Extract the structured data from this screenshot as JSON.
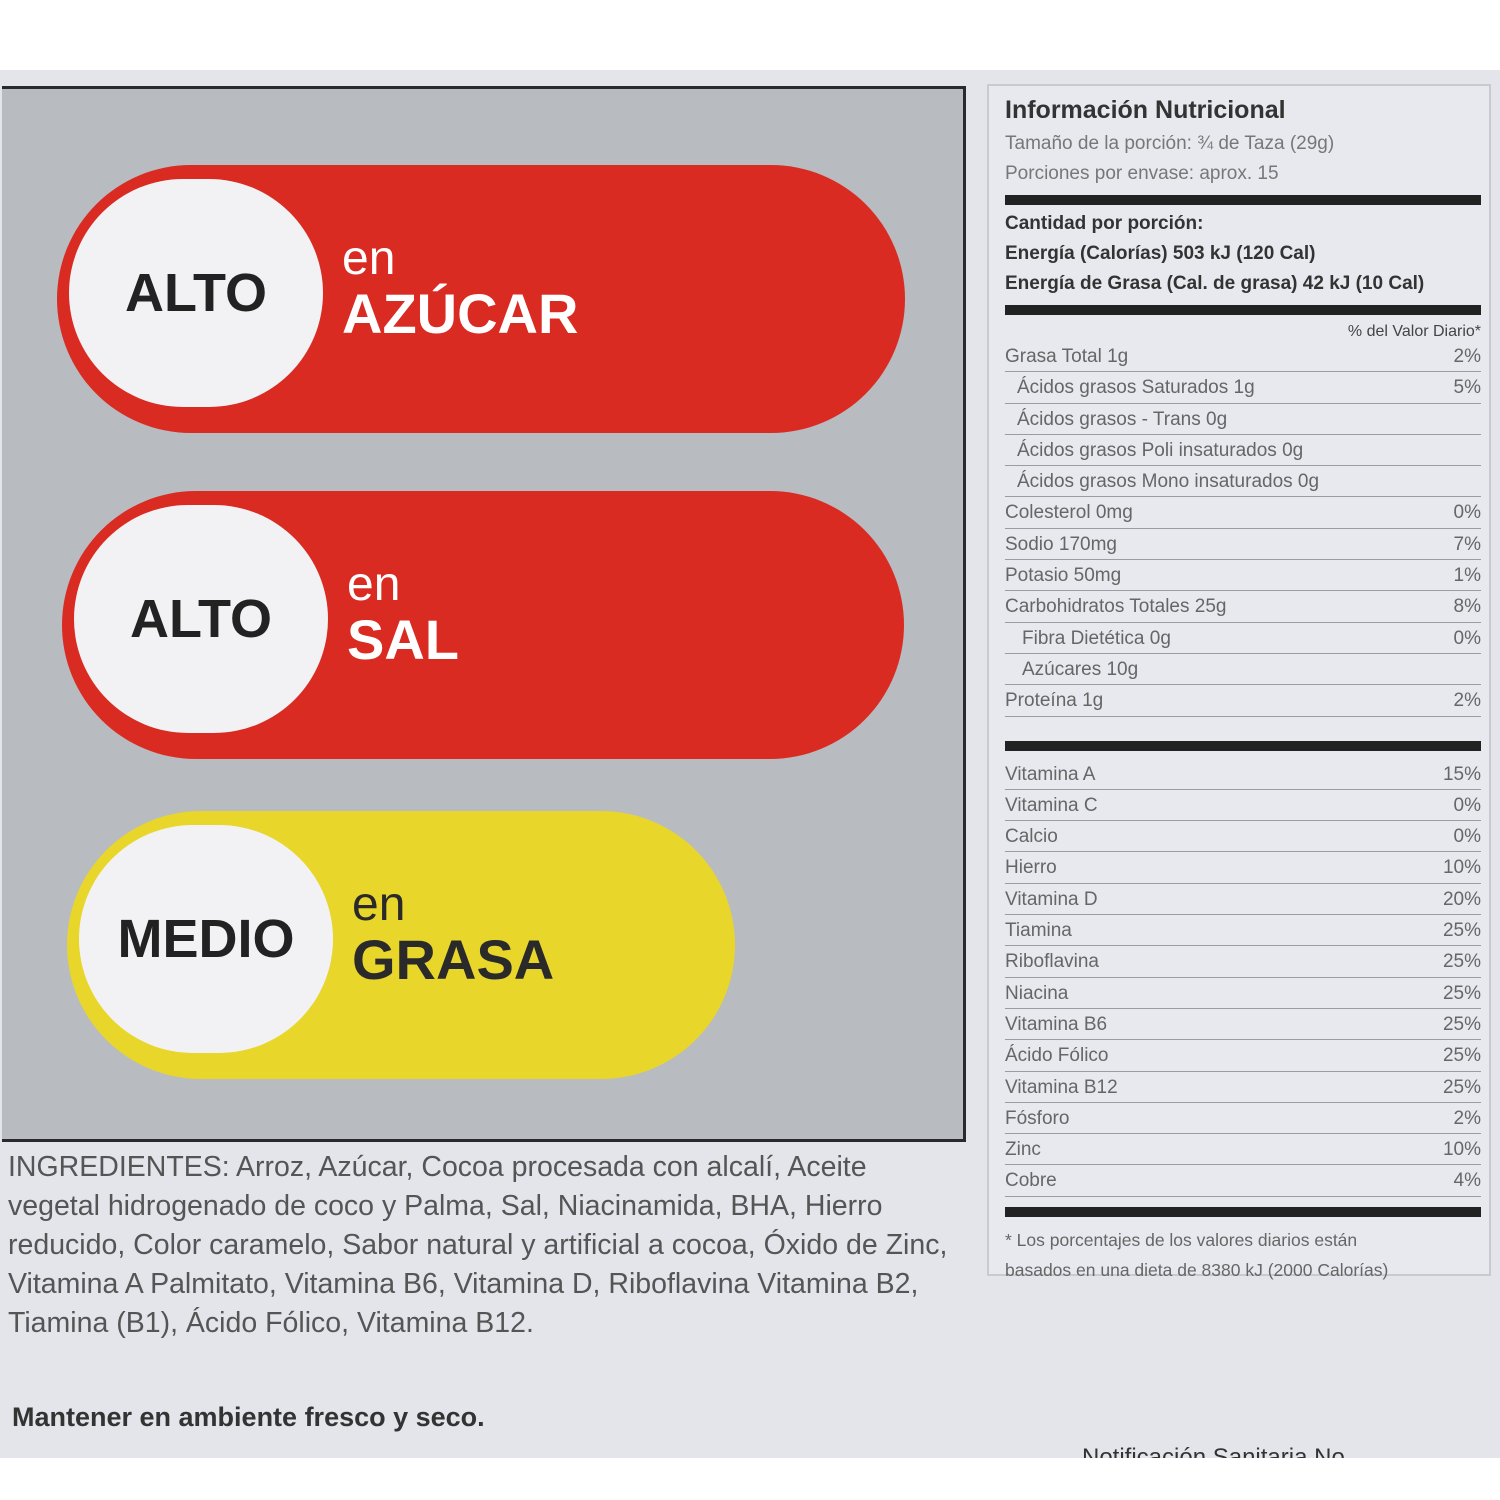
{
  "warnings": [
    {
      "level": "ALTO",
      "prefix": "en",
      "nutrient": "AZÚCAR",
      "color": "#d92b22"
    },
    {
      "level": "ALTO",
      "prefix": "en",
      "nutrient": "SAL",
      "color": "#d92b22"
    },
    {
      "level": "MEDIO",
      "prefix": "en",
      "nutrient": "GRASA",
      "color": "#e8d62a"
    }
  ],
  "ingredients": "INGREDIENTES: Arroz, Azúcar, Cocoa procesada con alcalí, Aceite vegetal hidrogenado de coco y Palma, Sal, Niacinamida, BHA, Hierro reducido, Color caramelo, Sabor natural y artificial a cocoa, Óxido de Zinc, Vitamina A Palmitato, Vitamina B6, Vitamina D, Riboflavina Vitamina B2, Tiamina (B1), Ácido Fólico, Vitamina B12.",
  "storage": "Mantener en ambiente fresco y seco.",
  "notification": "Notificación Sanitaria No.",
  "nutrition": {
    "title": "Información Nutricional",
    "serving_size": "Tamaño de la porción: ¾ de Taza (29g)",
    "servings": "Porciones por envase: aprox. 15",
    "amount_label": "Cantidad por porción:",
    "energy": "Energía (Calorías) 503 kJ (120 Cal)",
    "fat_energy": "Energía de Grasa  (Cal. de grasa) 42 kJ (10 Cal)",
    "dv_header": "% del Valor Diario*",
    "nutrients": [
      {
        "name": "Grasa Total  1g",
        "dv": "2%",
        "indent": 0
      },
      {
        "name": "Ácidos grasos Saturados 1g",
        "dv": "5%",
        "indent": 1
      },
      {
        "name": "Ácidos grasos - Trans 0g",
        "dv": "",
        "indent": 1
      },
      {
        "name": "Ácidos grasos Poli insaturados 0g",
        "dv": "",
        "indent": 1
      },
      {
        "name": "Ácidos grasos Mono insaturados 0g",
        "dv": "",
        "indent": 1
      },
      {
        "name": "Colesterol 0mg",
        "dv": "0%",
        "indent": 0
      },
      {
        "name": "Sodio 170mg",
        "dv": "7%",
        "indent": 0
      },
      {
        "name": "Potasio 50mg",
        "dv": "1%",
        "indent": 0
      },
      {
        "name": "Carbohidratos Totales 25g",
        "dv": "8%",
        "indent": 0
      },
      {
        "name": "Fibra Dietética 0g",
        "dv": "0%",
        "indent": 2
      },
      {
        "name": "Azúcares 10g",
        "dv": "",
        "indent": 2
      },
      {
        "name": "Proteína 1g",
        "dv": "2%",
        "indent": 0
      }
    ],
    "vitamins": [
      {
        "name": "Vitamina A",
        "dv": "15%"
      },
      {
        "name": "Vitamina C",
        "dv": "0%"
      },
      {
        "name": "Calcio",
        "dv": "0%"
      },
      {
        "name": "Hierro",
        "dv": "10%"
      },
      {
        "name": "Vitamina D",
        "dv": "20%"
      },
      {
        "name": "Tiamina",
        "dv": "25%"
      },
      {
        "name": "Riboflavina",
        "dv": "25%"
      },
      {
        "name": "Niacina",
        "dv": "25%"
      },
      {
        "name": "Vitamina B6",
        "dv": "25%"
      },
      {
        "name": "Ácido Fólico",
        "dv": "25%"
      },
      {
        "name": "Vitamina B12",
        "dv": "25%"
      },
      {
        "name": "Fósforo",
        "dv": "2%"
      },
      {
        "name": "Zinc",
        "dv": "10%"
      },
      {
        "name": "Cobre",
        "dv": "4%"
      }
    ],
    "footnote_1": "* Los porcentajes de los valores diarios están",
    "footnote_2": "basados en una dieta de 8380 kJ (2000 Calorías)"
  }
}
